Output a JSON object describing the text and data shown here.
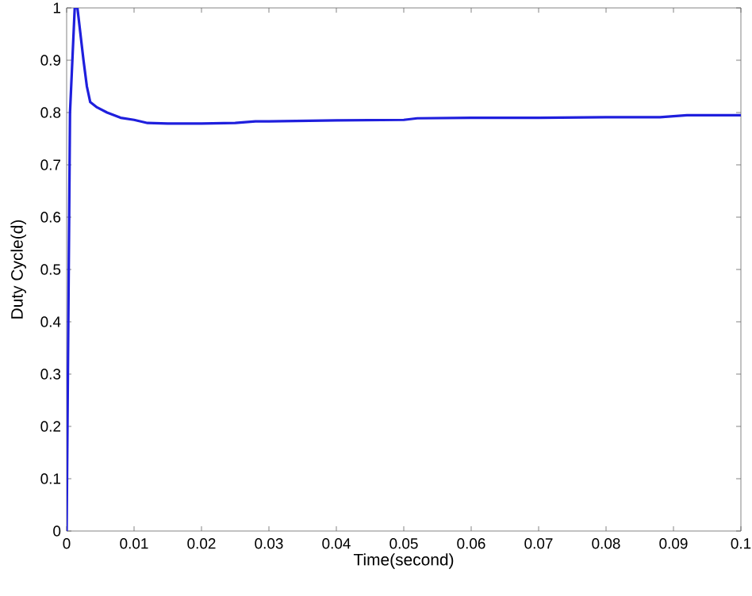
{
  "chart_data": {
    "type": "line",
    "xlabel": "Time(second)",
    "ylabel": "Duty Cycle(d)",
    "xlim": [
      0,
      0.1
    ],
    "ylim": [
      0,
      1
    ],
    "xticks": [
      0,
      0.01,
      0.02,
      0.03,
      0.04,
      0.05,
      0.06,
      0.07,
      0.08,
      0.09,
      0.1
    ],
    "yticks": [
      0,
      0.1,
      0.2,
      0.3,
      0.4,
      0.5,
      0.6,
      0.7,
      0.8,
      0.9,
      1
    ],
    "line_style": "solid",
    "marker": "none",
    "x": [
      0,
      0.0005,
      0.0012,
      0.0016,
      0.0025,
      0.003,
      0.0035,
      0.0045,
      0.006,
      0.008,
      0.01,
      0.012,
      0.015,
      0.02,
      0.025,
      0.028,
      0.03,
      0.04,
      0.05,
      0.052,
      0.06,
      0.07,
      0.08,
      0.088,
      0.092,
      0.1
    ],
    "series": [
      {
        "color": "#1f1fdd",
        "values": [
          0,
          0.8,
          1.0,
          1.0,
          0.9,
          0.85,
          0.82,
          0.81,
          0.8,
          0.79,
          0.786,
          0.78,
          0.779,
          0.779,
          0.78,
          0.783,
          0.783,
          0.785,
          0.786,
          0.789,
          0.79,
          0.79,
          0.791,
          0.791,
          0.795,
          0.795
        ]
      }
    ]
  }
}
